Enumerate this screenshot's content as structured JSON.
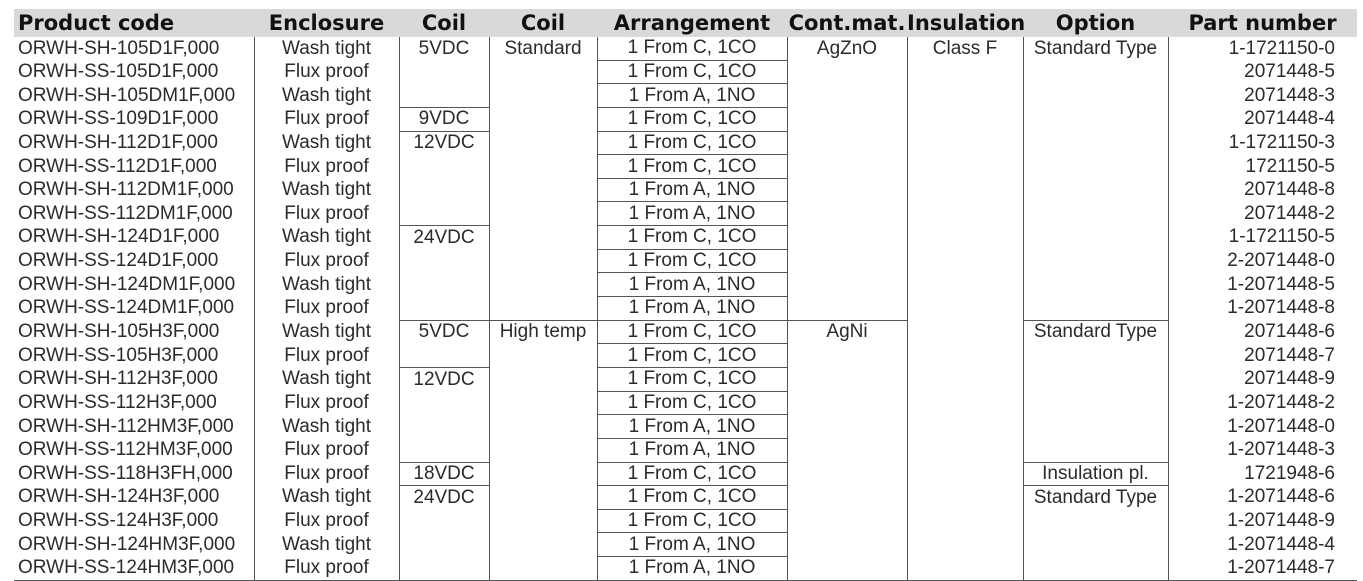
{
  "headers": [
    "Product code",
    "Enclosure",
    "Coil",
    "Coil",
    "Arrangement",
    "Cont.mat.",
    "Insulation",
    "Option",
    "Part number"
  ],
  "rows": [
    [
      "ORWH-SH-105D1F,000",
      "Wash tight",
      "5VDC",
      "Standard",
      "1 From C, 1CO",
      "AgZnO",
      "Class F",
      "Standard Type",
      "1-1721150-0"
    ],
    [
      "ORWH-SS-105D1F,000",
      "Flux proof",
      "",
      "",
      "1 From C, 1CO",
      "",
      "",
      "",
      "2071448-5"
    ],
    [
      "ORWH-SH-105DM1F,000",
      "Wash tight",
      "",
      "",
      "1 From A, 1NO",
      "",
      "",
      "",
      "2071448-3"
    ],
    [
      "ORWH-SS-109D1F,000",
      "Flux proof",
      "9VDC",
      "",
      "1 From C, 1CO",
      "",
      "",
      "",
      "2071448-4"
    ],
    [
      "ORWH-SH-112D1F,000",
      "Wash tight",
      "12VDC",
      "",
      "1 From C, 1CO",
      "",
      "",
      "",
      "1-1721150-3"
    ],
    [
      "ORWH-SS-112D1F,000",
      "Flux proof",
      "",
      "",
      "1 From C, 1CO",
      "",
      "",
      "",
      "1721150-5"
    ],
    [
      "ORWH-SH-112DM1F,000",
      "Wash tight",
      "",
      "",
      "1 From A, 1NO",
      "",
      "",
      "",
      "2071448-8"
    ],
    [
      "ORWH-SS-112DM1F,000",
      "Flux proof",
      "",
      "",
      "1 From A, 1NO",
      "",
      "",
      "",
      "2071448-2"
    ],
    [
      "ORWH-SH-124D1F,000",
      "Wash tight",
      "24VDC",
      "",
      "1 From C, 1CO",
      "",
      "",
      "",
      "1-1721150-5"
    ],
    [
      "ORWH-SS-124D1F,000",
      "Flux proof",
      "",
      "",
      "1 From C, 1CO",
      "",
      "",
      "",
      "2-2071448-0"
    ],
    [
      "ORWH-SH-124DM1F,000",
      "Wash tight",
      "",
      "",
      "1 From A, 1NO",
      "",
      "",
      "",
      "1-2071448-5"
    ],
    [
      "ORWH-SS-124DM1F,000",
      "Flux proof",
      "",
      "",
      "1 From A, 1NO",
      "",
      "",
      "",
      "1-2071448-8"
    ],
    [
      "ORWH-SH-105H3F,000",
      "Wash tight",
      "5VDC",
      "High temp",
      "1 From C, 1CO",
      "AgNi",
      "",
      "Standard Type",
      "2071448-6"
    ],
    [
      "ORWH-SS-105H3F,000",
      "Flux proof",
      "",
      "",
      "1 From C, 1CO",
      "",
      "",
      "",
      "2071448-7"
    ],
    [
      "ORWH-SH-112H3F,000",
      "Wash tight",
      "12VDC",
      "",
      "1 From C, 1CO",
      "",
      "",
      "",
      "2071448-9"
    ],
    [
      "ORWH-SS-112H3F,000",
      "Flux proof",
      "",
      "",
      "1 From C, 1CO",
      "",
      "",
      "",
      "1-2071448-2"
    ],
    [
      "ORWH-SH-112HM3F,000",
      "Wash tight",
      "",
      "",
      "1 From A, 1NO",
      "",
      "",
      "",
      "1-2071448-0"
    ],
    [
      "ORWH-SS-112HM3F,000",
      "Flux proof",
      "",
      "",
      "1 From A, 1NO",
      "",
      "",
      "",
      "1-2071448-3"
    ],
    [
      "ORWH-SS-118H3FH,000",
      "Flux proof",
      "18VDC",
      "",
      "1 From C, 1CO",
      "",
      "",
      "Insulation pl.",
      "1721948-6"
    ],
    [
      "ORWH-SH-124H3F,000",
      "Wash tight",
      "24VDC",
      "",
      "1 From C, 1CO",
      "",
      "",
      "Standard Type",
      "1-2071448-6"
    ],
    [
      "ORWH-SS-124H3F,000",
      "Flux proof",
      "",
      "",
      "1 From C, 1CO",
      "",
      "",
      "",
      "1-2071448-9"
    ],
    [
      "ORWH-SH-124HM3F,000",
      "Wash tight",
      "",
      "",
      "1 From A, 1NO",
      "",
      "",
      "",
      "1-2071448-4"
    ],
    [
      "ORWH-SS-124HM3F,000",
      "Flux proof",
      "",
      "",
      "1 From A, 1NO",
      "",
      "",
      "",
      "1-2071448-7"
    ]
  ]
}
